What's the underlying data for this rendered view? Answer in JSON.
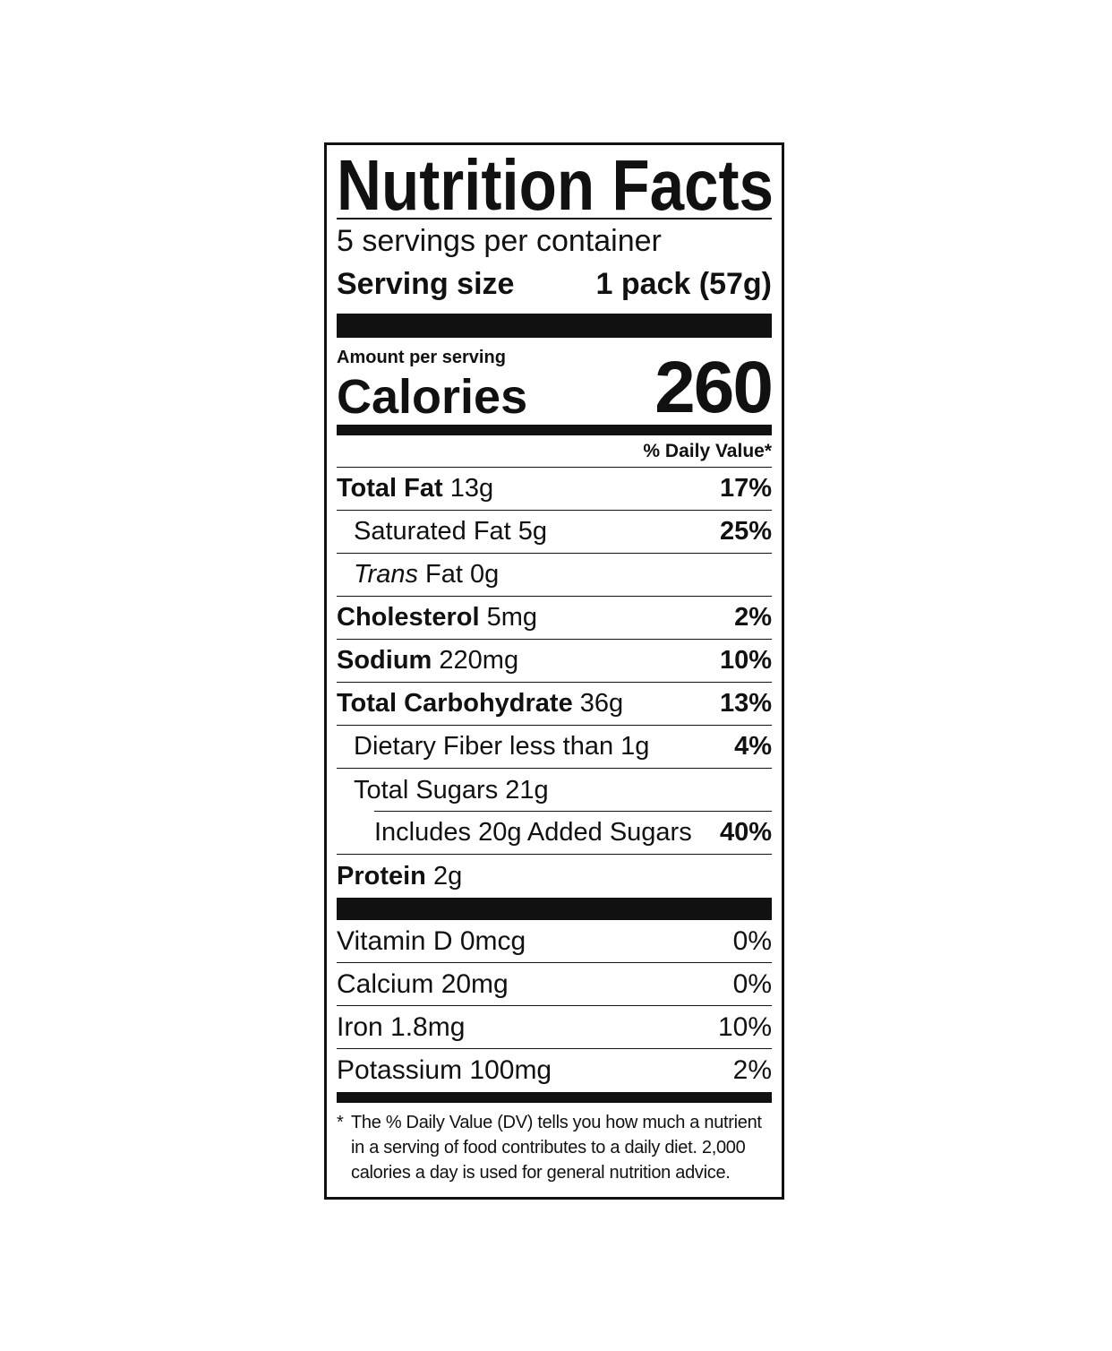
{
  "title": "Nutrition Facts",
  "servings": "5 servings per container",
  "serving_size": {
    "label": "Serving size",
    "value": "1 pack (57g)"
  },
  "amount_per_serving": "Amount per serving",
  "calories": {
    "label": "Calories",
    "value": "260"
  },
  "daily_value_header": "% Daily Value*",
  "nutrients": [
    {
      "name": "Total Fat",
      "amount": "13g",
      "dv": "17%",
      "sub": [
        {
          "label": "Saturated Fat 5g",
          "dv": "25%"
        },
        {
          "label_italic": "Trans",
          "label": "Fat 0g"
        }
      ]
    },
    {
      "name": "Cholesterol",
      "amount": "5mg",
      "dv": "2%"
    },
    {
      "name": "Sodium",
      "amount": "220mg",
      "dv": "10%"
    },
    {
      "name": "Total Carbohydrate",
      "amount": "36g",
      "dv": "13%",
      "sub": [
        {
          "label": "Dietary Fiber less than 1g",
          "dv": "4%"
        },
        {
          "label": "Total Sugars 21g",
          "sub": [
            {
              "label": "Includes 20g Added Sugars",
              "dv": "40%"
            }
          ]
        }
      ]
    },
    {
      "name": "Protein",
      "amount": "2g"
    }
  ],
  "vitamins": [
    {
      "label": "Vitamin D 0mcg",
      "dv": "0%"
    },
    {
      "label": "Calcium 20mg",
      "dv": "0%"
    },
    {
      "label": "Iron 1.8mg",
      "dv": "10%"
    },
    {
      "label": "Potassium 100mg",
      "dv": "2%"
    }
  ],
  "footnote": {
    "mark": "*",
    "text": "The % Daily Value (DV) tells you how much a nutrient in a serving of food contributes to a daily diet. 2,000 calories a day is used for general nutrition advice."
  }
}
